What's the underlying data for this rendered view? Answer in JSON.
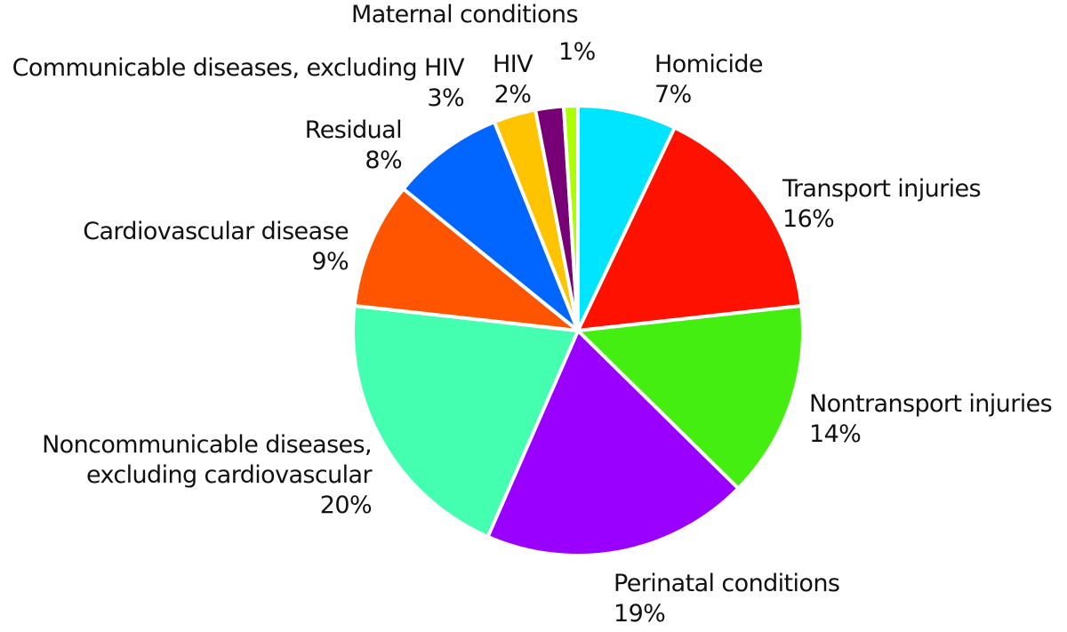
{
  "chart_data": {
    "type": "pie",
    "start_angle_deg": 0,
    "direction": "clockwise",
    "slices": [
      {
        "label": "Homicide",
        "pct_text": "7%",
        "value": 7,
        "color": "#00E5FF"
      },
      {
        "label": "Transport injuries",
        "pct_text": "16%",
        "value": 16,
        "color": "#FF1100"
      },
      {
        "label": "Nontransport injuries",
        "pct_text": "14%",
        "value": 14,
        "color": "#44EE11"
      },
      {
        "label": "Perinatal conditions",
        "pct_text": "19%",
        "value": 19,
        "color": "#9900FF"
      },
      {
        "label_lines": [
          "Noncommunicable diseases,",
          "excluding cardiovascular"
        ],
        "pct_text": "20%",
        "value": 20,
        "color": "#44FFB0"
      },
      {
        "label": "Cardiovascular disease",
        "pct_text": "9%",
        "value": 9,
        "color": "#FF5500"
      },
      {
        "label": "Residual",
        "pct_text": "8%",
        "value": 8,
        "color": "#0066FF"
      },
      {
        "label": "Communicable diseases, excluding HIV",
        "pct_text": "3%",
        "value": 3,
        "color": "#FFC400"
      },
      {
        "label": "HIV",
        "pct_text": "2%",
        "value": 2,
        "color": "#770077"
      },
      {
        "label": "Maternal conditions",
        "pct_text": "1%",
        "value": 1,
        "color": "#AAFF00"
      }
    ]
  }
}
